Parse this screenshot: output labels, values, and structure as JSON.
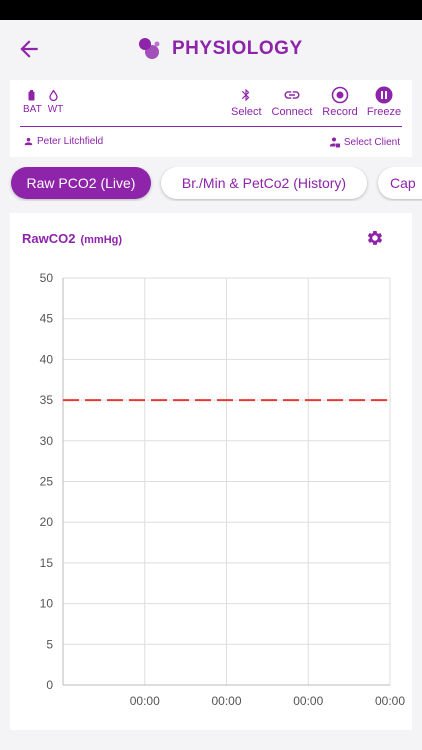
{
  "header": {
    "title": "PHYSIOLOGY"
  },
  "device": {
    "bat_label": "BAT",
    "wt_label": "WT",
    "tools": [
      {
        "label": "Select",
        "icon": "bluetooth-icon"
      },
      {
        "label": "Connect",
        "icon": "link-icon"
      },
      {
        "label": "Record",
        "icon": "record-icon"
      },
      {
        "label": "Freeze",
        "icon": "pause-icon"
      }
    ],
    "person": "Peter Litchfield",
    "select_client": "Select Client"
  },
  "tabs": [
    {
      "label": "Raw PCO2 (Live)",
      "active": true
    },
    {
      "label": "Br./Min & PetCo2 (History)",
      "active": false
    },
    {
      "label": "Cap",
      "active": false
    }
  ],
  "chart": {
    "title": "RawCO2",
    "unit": "(mmHg)"
  },
  "chart_data": {
    "type": "line",
    "title": "RawCO2 (mmHg)",
    "ylim": [
      0,
      50
    ],
    "yticks": [
      0,
      5,
      10,
      15,
      20,
      25,
      30,
      35,
      40,
      45,
      50
    ],
    "xtick_labels": [
      "00:00",
      "00:00",
      "00:00",
      "00:00"
    ],
    "grid": true,
    "reference_line": {
      "y": 35,
      "style": "dashed",
      "color": "#e53935"
    },
    "series": []
  },
  "colors": {
    "accent": "#8e24aa",
    "reference": "#e53935"
  }
}
